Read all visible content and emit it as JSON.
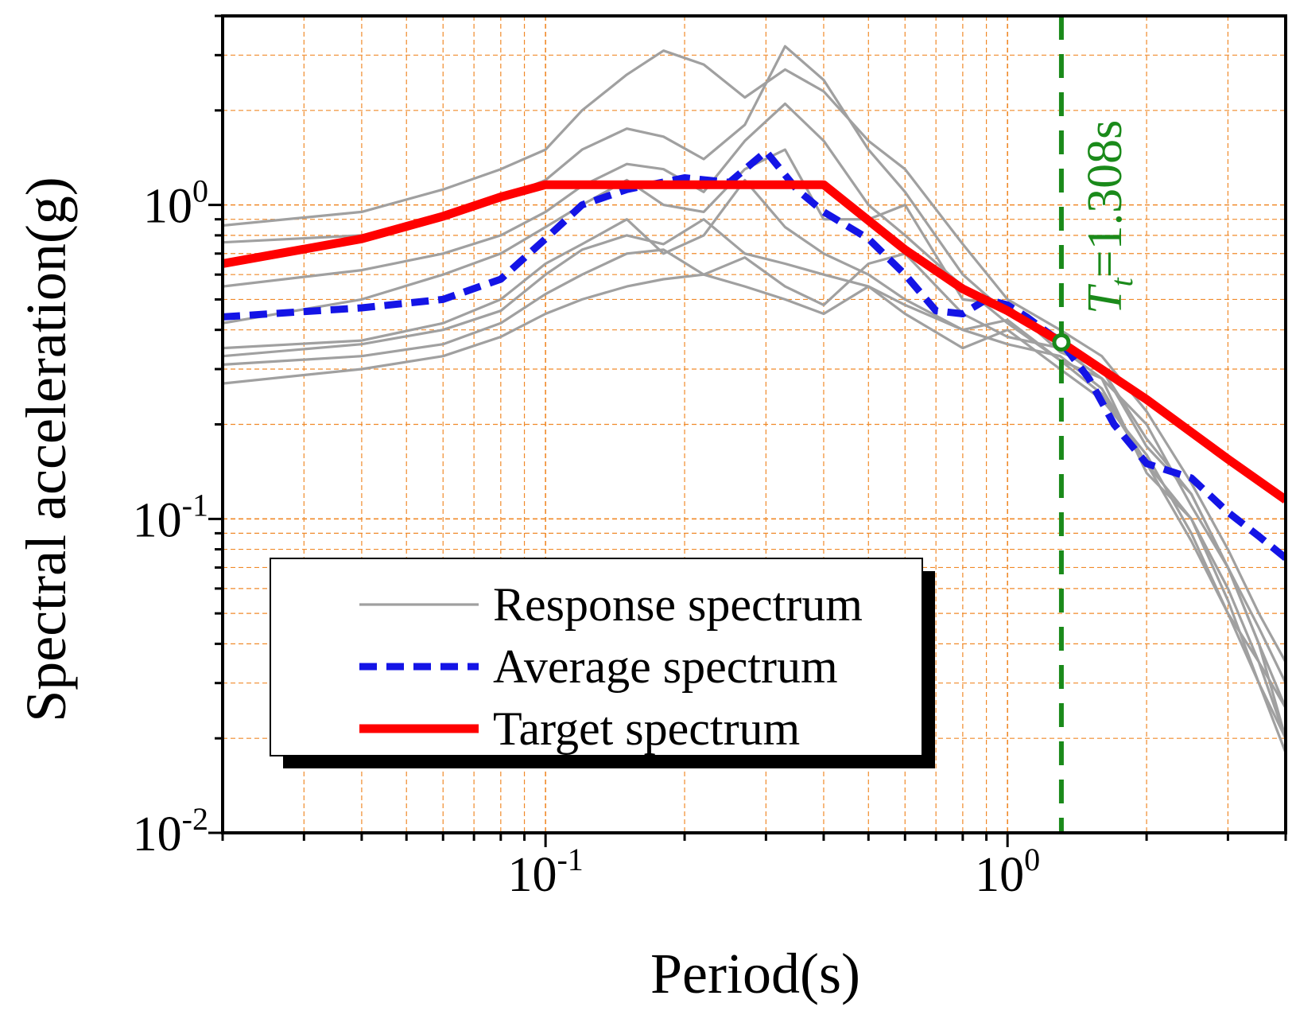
{
  "chart_data": {
    "type": "line",
    "xscale": "log",
    "yscale": "log",
    "xlim": [
      0.02,
      4.0
    ],
    "ylim": [
      0.01,
      4.0
    ],
    "xlabel": "Period(s)",
    "ylabel": "Spectral acceleration(g)",
    "grid": true,
    "legend_position": "bottom-left",
    "x_ticks": [
      {
        "value": 0.1,
        "base": "10",
        "exp": "-1"
      },
      {
        "value": 1.0,
        "base": "10",
        "exp": "0"
      }
    ],
    "y_ticks": [
      {
        "value": 0.01,
        "base": "10",
        "exp": "-2"
      },
      {
        "value": 0.1,
        "base": "10",
        "exp": "-1"
      },
      {
        "value": 1.0,
        "base": "10",
        "exp": "0"
      }
    ],
    "colors": {
      "response": "#a0a0a0",
      "average": "#1414e6",
      "target": "#ff0000",
      "marker": "#1a8a1a",
      "grid": "#f08a2a"
    },
    "legend": [
      {
        "label": "Response spectrum",
        "style": "response"
      },
      {
        "label": "Average spectrum",
        "style": "average"
      },
      {
        "label": "Target spectrum",
        "style": "target"
      }
    ],
    "annotation": {
      "main": "T",
      "sub": "t",
      "rest": "=1.308s",
      "x": 1.308,
      "y": 0.365
    },
    "series": [
      {
        "name": "Target spectrum",
        "style": "target",
        "x": [
          0.02,
          0.04,
          0.06,
          0.08,
          0.1,
          0.2,
          0.3,
          0.4,
          0.6,
          0.8,
          1.0,
          1.308,
          2.0,
          3.0,
          4.0
        ],
        "y": [
          0.65,
          0.78,
          0.92,
          1.06,
          1.16,
          1.16,
          1.16,
          1.16,
          0.72,
          0.54,
          0.46,
          0.365,
          0.24,
          0.155,
          0.115
        ]
      },
      {
        "name": "Average spectrum",
        "style": "average",
        "x": [
          0.02,
          0.04,
          0.06,
          0.08,
          0.1,
          0.12,
          0.15,
          0.2,
          0.25,
          0.3,
          0.35,
          0.4,
          0.5,
          0.6,
          0.7,
          0.8,
          0.9,
          1.0,
          1.1,
          1.2,
          1.308,
          1.5,
          1.7,
          2.0,
          2.5,
          3.0,
          3.5,
          4.0
        ],
        "y": [
          0.44,
          0.47,
          0.5,
          0.58,
          0.78,
          1.0,
          1.12,
          1.22,
          1.18,
          1.48,
          1.12,
          0.95,
          0.78,
          0.6,
          0.46,
          0.45,
          0.5,
          0.48,
          0.44,
          0.4,
          0.365,
          0.28,
          0.2,
          0.15,
          0.135,
          0.105,
          0.088,
          0.075
        ]
      },
      {
        "style": "response",
        "x": [
          0.02,
          0.04,
          0.06,
          0.08,
          0.1,
          0.12,
          0.15,
          0.18,
          0.22,
          0.27,
          0.33,
          0.4,
          0.5,
          0.6,
          0.8,
          1.0,
          1.3,
          1.6,
          2.0,
          2.5,
          3.0,
          3.5,
          4.0
        ],
        "y": [
          0.86,
          0.95,
          1.12,
          1.3,
          1.5,
          2.0,
          2.6,
          3.1,
          2.8,
          2.2,
          2.7,
          2.3,
          1.6,
          1.3,
          0.75,
          0.5,
          0.4,
          0.33,
          0.22,
          0.13,
          0.08,
          0.05,
          0.035
        ]
      },
      {
        "style": "response",
        "x": [
          0.02,
          0.04,
          0.06,
          0.08,
          0.1,
          0.12,
          0.15,
          0.18,
          0.22,
          0.27,
          0.33,
          0.4,
          0.5,
          0.6,
          0.8,
          1.0,
          1.3,
          1.6,
          2.0,
          2.5,
          3.0,
          3.5,
          4.0
        ],
        "y": [
          0.76,
          0.8,
          0.9,
          1.05,
          1.2,
          1.5,
          1.75,
          1.65,
          1.4,
          1.8,
          3.2,
          2.5,
          1.5,
          1.1,
          0.6,
          0.45,
          0.38,
          0.3,
          0.18,
          0.12,
          0.07,
          0.045,
          0.03
        ]
      },
      {
        "style": "response",
        "x": [
          0.02,
          0.04,
          0.06,
          0.08,
          0.1,
          0.12,
          0.15,
          0.18,
          0.22,
          0.27,
          0.33,
          0.4,
          0.5,
          0.6,
          0.8,
          1.0,
          1.3,
          1.6,
          2.0,
          2.5,
          3.0,
          3.5,
          4.0
        ],
        "y": [
          0.55,
          0.62,
          0.7,
          0.8,
          0.95,
          1.15,
          1.35,
          1.3,
          1.1,
          1.6,
          2.1,
          1.6,
          1.0,
          0.8,
          0.55,
          0.42,
          0.32,
          0.28,
          0.2,
          0.11,
          0.07,
          0.04,
          0.025
        ]
      },
      {
        "style": "response",
        "x": [
          0.02,
          0.04,
          0.06,
          0.08,
          0.1,
          0.12,
          0.15,
          0.18,
          0.22,
          0.27,
          0.33,
          0.4,
          0.5,
          0.6,
          0.8,
          1.0,
          1.3,
          1.6,
          2.0,
          2.5,
          3.0,
          3.5,
          4.0
        ],
        "y": [
          0.42,
          0.5,
          0.6,
          0.7,
          0.85,
          1.0,
          1.2,
          1.0,
          0.95,
          1.3,
          1.5,
          0.9,
          0.9,
          1.0,
          0.5,
          0.48,
          0.34,
          0.3,
          0.17,
          0.12,
          0.07,
          0.04,
          0.02
        ]
      },
      {
        "style": "response",
        "x": [
          0.02,
          0.04,
          0.06,
          0.08,
          0.1,
          0.12,
          0.15,
          0.18,
          0.22,
          0.27,
          0.33,
          0.4,
          0.5,
          0.6,
          0.8,
          1.0,
          1.3,
          1.6,
          2.0,
          2.5,
          3.0,
          3.5,
          4.0
        ],
        "y": [
          0.35,
          0.37,
          0.42,
          0.5,
          0.65,
          0.75,
          0.9,
          0.7,
          0.8,
          1.2,
          0.85,
          0.7,
          0.6,
          0.5,
          0.4,
          0.43,
          0.32,
          0.25,
          0.15,
          0.1,
          0.06,
          0.035,
          0.025
        ]
      },
      {
        "style": "response",
        "x": [
          0.02,
          0.04,
          0.06,
          0.08,
          0.1,
          0.12,
          0.15,
          0.18,
          0.22,
          0.27,
          0.33,
          0.4,
          0.5,
          0.6,
          0.8,
          1.0,
          1.3,
          1.6,
          2.0,
          2.5,
          3.0,
          3.5,
          4.0
        ],
        "y": [
          0.33,
          0.36,
          0.4,
          0.46,
          0.6,
          0.72,
          0.8,
          0.75,
          0.9,
          0.7,
          0.65,
          0.6,
          0.55,
          0.45,
          0.35,
          0.4,
          0.3,
          0.24,
          0.16,
          0.09,
          0.05,
          0.035,
          0.02
        ]
      },
      {
        "style": "response",
        "x": [
          0.02,
          0.04,
          0.06,
          0.08,
          0.1,
          0.12,
          0.15,
          0.18,
          0.22,
          0.27,
          0.33,
          0.4,
          0.5,
          0.6,
          0.8,
          1.0,
          1.3,
          1.6,
          2.0,
          2.5,
          3.0,
          3.5,
          4.0
        ],
        "y": [
          0.31,
          0.33,
          0.36,
          0.42,
          0.52,
          0.6,
          0.7,
          0.72,
          0.6,
          0.68,
          0.55,
          0.48,
          0.65,
          0.7,
          0.45,
          0.38,
          0.35,
          0.28,
          0.14,
          0.1,
          0.055,
          0.03,
          0.018
        ]
      },
      {
        "style": "response",
        "x": [
          0.02,
          0.04,
          0.06,
          0.08,
          0.1,
          0.12,
          0.15,
          0.18,
          0.22,
          0.27,
          0.33,
          0.4,
          0.5,
          0.6,
          0.8,
          1.0,
          1.3,
          1.6,
          2.0,
          2.5,
          3.0,
          3.5,
          4.0
        ],
        "y": [
          0.27,
          0.3,
          0.33,
          0.38,
          0.45,
          0.5,
          0.55,
          0.58,
          0.6,
          0.55,
          0.5,
          0.45,
          0.55,
          0.48,
          0.4,
          0.36,
          0.33,
          0.26,
          0.15,
          0.085,
          0.05,
          0.03,
          0.02
        ]
      }
    ]
  }
}
